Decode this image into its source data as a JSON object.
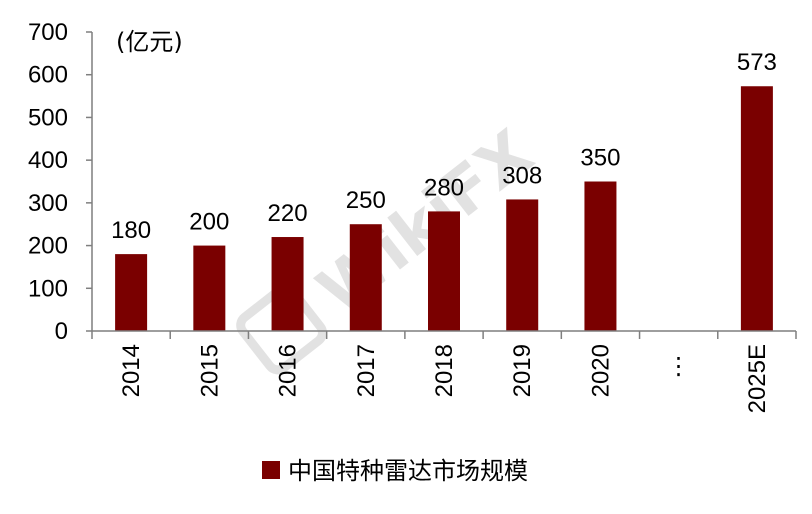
{
  "chart_data": {
    "type": "bar",
    "categories": [
      "2014",
      "2015",
      "2016",
      "2017",
      "2018",
      "2019",
      "2020",
      "⋮",
      "2025E"
    ],
    "values": [
      180,
      200,
      220,
      250,
      280,
      308,
      350,
      null,
      573
    ],
    "data_labels": [
      "180",
      "200",
      "220",
      "250",
      "280",
      "308",
      "350",
      "",
      "573"
    ],
    "unit_label": "(亿元)",
    "ylim": [
      0,
      700
    ],
    "yticks": [
      0,
      100,
      200,
      300,
      400,
      500,
      600,
      700
    ],
    "grid": false,
    "legend": {
      "position": "bottom-center",
      "entries": [
        "中国特种雷达市场规模"
      ]
    },
    "series": [
      {
        "name": "中国特种雷达市场规模",
        "color": "#7a0000"
      }
    ]
  },
  "watermark": "WikiFX"
}
